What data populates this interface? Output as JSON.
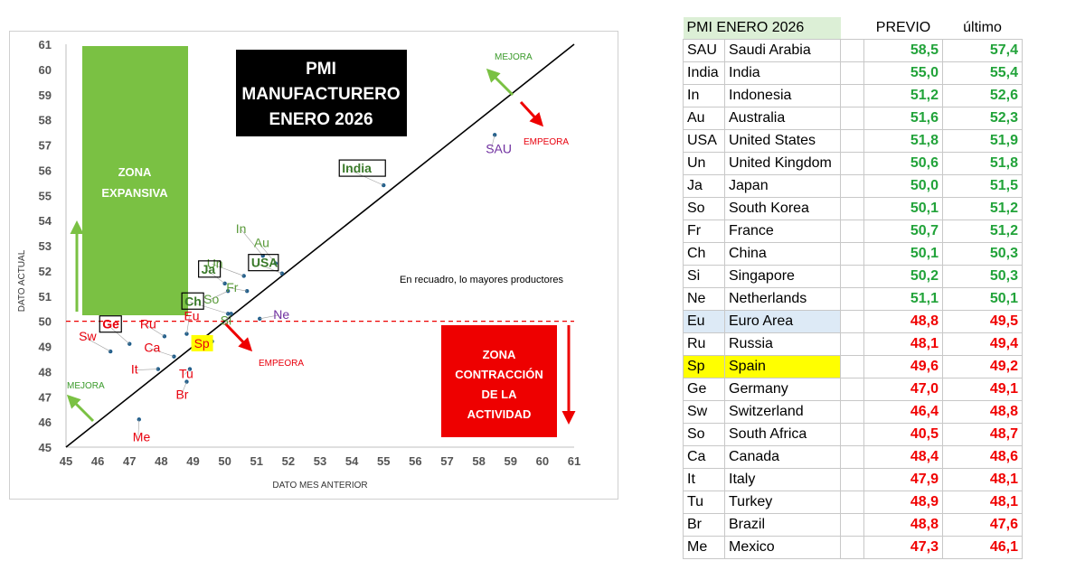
{
  "chart_data": {
    "type": "scatter",
    "title_lines": [
      "PMI",
      "MANUFACTURERO",
      "ENERO 2026"
    ],
    "xlabel": "DATO MES ANTERIOR",
    "ylabel": "DATO ACTUAL",
    "xlim": [
      45,
      61
    ],
    "ylim": [
      45,
      61
    ],
    "ticks": [
      "45",
      "46",
      "47",
      "48",
      "49",
      "50",
      "51",
      "52",
      "53",
      "54",
      "55",
      "56",
      "57",
      "58",
      "59",
      "60",
      "61"
    ],
    "threshold": 50,
    "reference_line": "y = x",
    "expansive_zone_lines": [
      "ZONA",
      "EXPANSIVA"
    ],
    "contraction_zone_lines": [
      "ZONA",
      "CONTRACCIÓN",
      "DE LA",
      "ACTIVIDAD"
    ],
    "note": "En recuadro, lo mayores productores",
    "arrow_labels": {
      "top_improve": "MEJORA",
      "top_worsen": "EMPEORA",
      "mid_worsen": "EMPEORA",
      "bottom_improve": "MEJORA"
    },
    "colors": {
      "improve": "#3a9a2a",
      "worsen": "#e8000d",
      "neutral": "#7030a0",
      "dot": "#1f5d8a",
      "zone_green": "#7ac143",
      "zone_red": "#ee0000"
    },
    "points": [
      {
        "label": "SAU",
        "x": 58.5,
        "y": 57.4,
        "color": "#7030a0"
      },
      {
        "label": "India",
        "x": 55.0,
        "y": 55.4,
        "color": "#3a7a2a",
        "boxed": true
      },
      {
        "label": "In",
        "x": 51.2,
        "y": 52.6,
        "color": "#5a9a3a"
      },
      {
        "label": "Au",
        "x": 51.6,
        "y": 52.3,
        "color": "#5a9a3a"
      },
      {
        "label": "USA",
        "x": 51.8,
        "y": 51.9,
        "color": "#3a7a2a",
        "boxed": true
      },
      {
        "label": "Un",
        "x": 50.6,
        "y": 51.8,
        "color": "#5a9a3a"
      },
      {
        "label": "Ja",
        "x": 50.0,
        "y": 51.5,
        "color": "#3a7a2a",
        "boxed": true
      },
      {
        "label": "So",
        "x": 50.1,
        "y": 51.2,
        "color": "#5a9a3a"
      },
      {
        "label": "Fr",
        "x": 50.7,
        "y": 51.2,
        "color": "#5a9a3a"
      },
      {
        "label": "Ch",
        "x": 50.1,
        "y": 50.3,
        "color": "#3a7a2a",
        "boxed": true
      },
      {
        "label": "Si",
        "x": 50.2,
        "y": 50.3,
        "color": "#5a9a3a"
      },
      {
        "label": "Ne",
        "x": 51.1,
        "y": 50.1,
        "color": "#7030a0"
      },
      {
        "label": "Eu",
        "x": 48.8,
        "y": 49.5,
        "color": "#e8000d"
      },
      {
        "label": "Ru",
        "x": 48.1,
        "y": 49.4,
        "color": "#e8000d"
      },
      {
        "label": "Sp",
        "x": 49.6,
        "y": 49.2,
        "color": "#e8000d",
        "highlight": true
      },
      {
        "label": "Ge",
        "x": 47.0,
        "y": 49.1,
        "color": "#e8000d",
        "boxed": true
      },
      {
        "label": "Sw",
        "x": 46.4,
        "y": 48.8,
        "color": "#e8000d"
      },
      {
        "label": "Ca",
        "x": 48.4,
        "y": 48.6,
        "color": "#e8000d"
      },
      {
        "label": "It",
        "x": 47.9,
        "y": 48.1,
        "color": "#e8000d"
      },
      {
        "label": "Tu",
        "x": 48.9,
        "y": 48.1,
        "color": "#e8000d"
      },
      {
        "label": "Br",
        "x": 48.8,
        "y": 47.6,
        "color": "#e8000d"
      },
      {
        "label": "Me",
        "x": 47.3,
        "y": 46.1,
        "color": "#e8000d"
      }
    ]
  },
  "table": {
    "title": "PMI ENERO 2026",
    "col_prev": "PREVIO",
    "col_last": "último",
    "rows": [
      {
        "code": "SAU",
        "name": "Saudi Arabia",
        "prev": "58,5",
        "last": "57,4",
        "trend": "up"
      },
      {
        "code": "India",
        "name": "India",
        "prev": "55,0",
        "last": "55,4",
        "trend": "up"
      },
      {
        "code": "In",
        "name": "Indonesia",
        "prev": "51,2",
        "last": "52,6",
        "trend": "up"
      },
      {
        "code": "Au",
        "name": "Australia",
        "prev": "51,6",
        "last": "52,3",
        "trend": "up"
      },
      {
        "code": "USA",
        "name": "United States",
        "prev": "51,8",
        "last": "51,9",
        "trend": "up"
      },
      {
        "code": "Un",
        "name": "United Kingdom",
        "prev": "50,6",
        "last": "51,8",
        "trend": "up"
      },
      {
        "code": "Ja",
        "name": "Japan",
        "prev": "50,0",
        "last": "51,5",
        "trend": "up"
      },
      {
        "code": "So",
        "name": "South Korea",
        "prev": "50,1",
        "last": "51,2",
        "trend": "up"
      },
      {
        "code": "Fr",
        "name": "France",
        "prev": "50,7",
        "last": "51,2",
        "trend": "up"
      },
      {
        "code": "Ch",
        "name": "China",
        "prev": "50,1",
        "last": "50,3",
        "trend": "up"
      },
      {
        "code": "Si",
        "name": "Singapore",
        "prev": "50,2",
        "last": "50,3",
        "trend": "up"
      },
      {
        "code": "Ne",
        "name": "Netherlands",
        "prev": "51,1",
        "last": "50,1",
        "trend": "up"
      },
      {
        "code": "Eu",
        "name": "Euro Area",
        "prev": "48,8",
        "last": "49,5",
        "trend": "down",
        "hl": "blue"
      },
      {
        "code": "Ru",
        "name": "Russia",
        "prev": "48,1",
        "last": "49,4",
        "trend": "down"
      },
      {
        "code": "Sp",
        "name": "Spain",
        "prev": "49,6",
        "last": "49,2",
        "trend": "down",
        "hl": "yellow"
      },
      {
        "code": "Ge",
        "name": "Germany",
        "prev": "47,0",
        "last": "49,1",
        "trend": "down"
      },
      {
        "code": "Sw",
        "name": "Switzerland",
        "prev": "46,4",
        "last": "48,8",
        "trend": "down"
      },
      {
        "code": "So",
        "name": "South Africa",
        "prev": "40,5",
        "last": "48,7",
        "trend": "down"
      },
      {
        "code": "Ca",
        "name": "Canada",
        "prev": "48,4",
        "last": "48,6",
        "trend": "down"
      },
      {
        "code": "It",
        "name": "Italy",
        "prev": "47,9",
        "last": "48,1",
        "trend": "down"
      },
      {
        "code": "Tu",
        "name": "Turkey",
        "prev": "48,9",
        "last": "48,1",
        "trend": "down"
      },
      {
        "code": "Br",
        "name": "Brazil",
        "prev": "48,8",
        "last": "47,6",
        "trend": "down"
      },
      {
        "code": "Me",
        "name": "Mexico",
        "prev": "47,3",
        "last": "46,1",
        "trend": "down"
      }
    ]
  }
}
